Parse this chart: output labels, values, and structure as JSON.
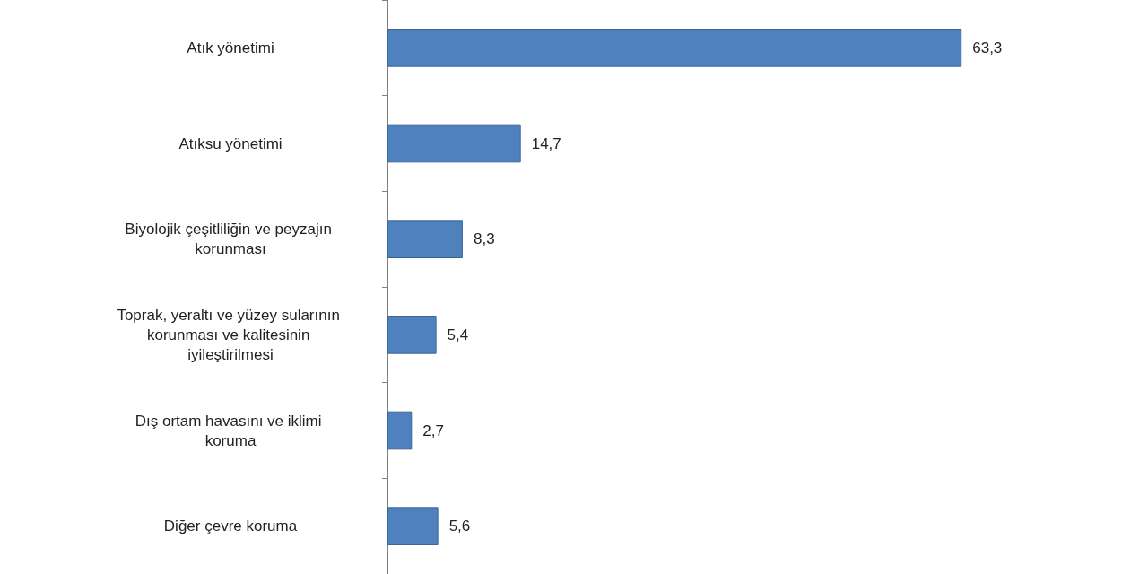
{
  "chart_data": {
    "type": "bar",
    "orientation": "horizontal",
    "tick_labels": "y",
    "categories": [
      "Atık yönetimi",
      "Atıksu yönetimi",
      "Biyolojik çeşitliliğin ve peyzajın korunması",
      "Toprak, yeraltı ve yüzey sularının korunması ve kalitesinin iyileştirilmesi",
      "Dış ortam havasını ve iklimi koruma",
      "Diğer çevre koruma"
    ],
    "values": [
      63.3,
      14.7,
      8.3,
      5.4,
      2.7,
      5.6
    ],
    "value_labels": [
      "63,3",
      "14,7",
      "8,3",
      "5,4",
      "2,7",
      "5,6"
    ],
    "color": "#4f81bd"
  }
}
